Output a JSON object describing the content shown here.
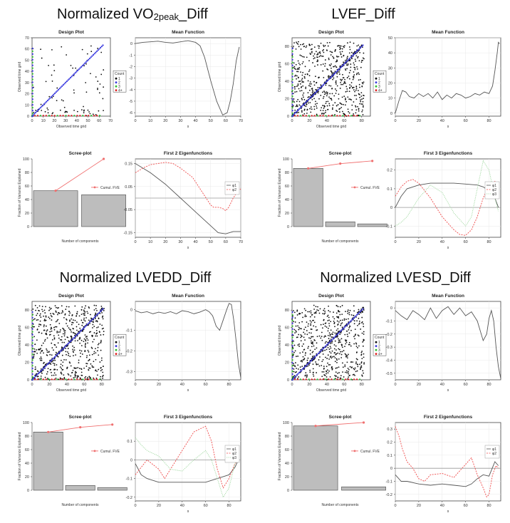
{
  "titles": [
    {
      "text": "Normalized VO2peak_Diff",
      "main": "Normalized VO",
      "sub": "2peak",
      "rest": "_Diff"
    },
    {
      "text": "LVEF_Diff"
    },
    {
      "text": "Normalized LVEDD_Diff"
    },
    {
      "text": "Normalized LVESD_Diff"
    }
  ],
  "colors": {
    "fve": "#f07070",
    "bar": "#bdbdbd",
    "phi1": "#555555",
    "phi2": "#ef4a4a",
    "phi3": "#9fd89f",
    "count1": "#111111",
    "count2": "#3a3adf",
    "count3": "#2fbf2f",
    "count4": "#e02020"
  },
  "chart_data": [
    {
      "panel": "Normalized VO2peak_Diff",
      "design": {
        "type": "scatter",
        "title": "Design Plot",
        "xlabel": "Observed time grid",
        "ylabel": "Observed time grid",
        "xlim": [
          0,
          70
        ],
        "ylim": [
          0,
          70
        ],
        "xticks": [
          0,
          10,
          20,
          30,
          40,
          50,
          60,
          70
        ],
        "yticks": [
          0,
          10,
          20,
          30,
          40,
          50,
          60,
          70
        ],
        "legend_title": "Count",
        "legend": [
          "1",
          "2",
          "3",
          "4+"
        ],
        "density": "sparse"
      },
      "mean": {
        "type": "line",
        "title": "Mean Function",
        "xlabel": "s",
        "xlim": [
          0,
          70
        ],
        "ylim": [
          -6.3,
          0.5
        ],
        "xticks": [
          0,
          10,
          20,
          30,
          40,
          50,
          60,
          70
        ],
        "yticks": [
          0,
          -1,
          -2,
          -3,
          -4,
          -5,
          -6
        ],
        "x": [
          0,
          5,
          10,
          15,
          20,
          25,
          30,
          35,
          40,
          43,
          46,
          50,
          54,
          58,
          61,
          63,
          65,
          67,
          69
        ],
        "y": [
          0,
          0.1,
          0.15,
          0.2,
          0.1,
          0.05,
          0.15,
          0.25,
          0.1,
          -0.2,
          -1.2,
          -3.2,
          -5.0,
          -6.2,
          -6.0,
          -5.0,
          -3.5,
          -1.5,
          -0.3
        ]
      },
      "scree": {
        "type": "bar",
        "title": "Scree-plot",
        "xlabel": "Number of components",
        "ylabel": "Fraction of Variance Explained",
        "ylim": [
          0,
          100
        ],
        "yticks": [
          0,
          20,
          40,
          60,
          80,
          100
        ],
        "values": [
          53,
          47
        ],
        "cumulative": [
          53,
          100
        ],
        "legend": "Cumul. FVE"
      },
      "eigen": {
        "type": "line",
        "title": "First 2 Eigenfunctions",
        "xlabel": "s",
        "xlim": [
          0,
          70
        ],
        "ylim": [
          -0.17,
          0.17
        ],
        "xticks": [
          0,
          10,
          20,
          30,
          40,
          50,
          60,
          70
        ],
        "yticks": [
          0.15,
          0.05,
          -0.05,
          -0.15
        ],
        "series": [
          {
            "name": "φ1",
            "x": [
              0,
              10,
              20,
              30,
              40,
              50,
              55,
              60,
              65,
              70
            ],
            "y": [
              0.15,
              0.11,
              0.06,
              0.0,
              -0.06,
              -0.12,
              -0.15,
              -0.155,
              -0.145,
              -0.145
            ]
          },
          {
            "name": "φ2",
            "x": [
              0,
              5,
              10,
              20,
              25,
              30,
              38,
              45,
              50,
              52,
              55,
              58,
              60,
              62,
              65,
              68,
              70
            ],
            "y": [
              0.11,
              0.13,
              0.145,
              0.155,
              0.15,
              0.13,
              0.09,
              0.02,
              -0.03,
              -0.04,
              -0.04,
              -0.045,
              -0.055,
              -0.04,
              0.0,
              0.03,
              0.04
            ]
          }
        ]
      }
    },
    {
      "panel": "LVEF_Diff",
      "design": {
        "type": "scatter",
        "title": "Design Plot",
        "xlabel": "Observed time grid",
        "ylabel": "Observed time grid",
        "xlim": [
          0,
          90
        ],
        "ylim": [
          0,
          90
        ],
        "xticks": [
          0,
          20,
          40,
          60,
          80
        ],
        "yticks": [
          0,
          20,
          40,
          60,
          80
        ],
        "legend_title": "Count",
        "legend": [
          "1",
          "2",
          "3",
          "4+"
        ],
        "density": "dense"
      },
      "mean": {
        "type": "line",
        "title": "Mean Function",
        "xlabel": "s",
        "xlim": [
          0,
          90
        ],
        "ylim": [
          -2,
          50
        ],
        "xticks": [
          0,
          20,
          40,
          60,
          80
        ],
        "yticks": [
          0,
          10,
          20,
          30,
          40,
          50
        ],
        "x": [
          0,
          3,
          6,
          9,
          12,
          16,
          20,
          24,
          28,
          32,
          36,
          40,
          44,
          48,
          52,
          56,
          60,
          64,
          68,
          72,
          76,
          80,
          83,
          85,
          87,
          88,
          89
        ],
        "y": [
          0,
          8,
          15,
          14,
          11,
          10,
          13,
          11,
          13,
          10,
          14,
          9,
          12,
          10,
          13,
          12,
          10,
          11,
          13,
          12,
          14,
          13,
          18,
          28,
          40,
          47,
          46
        ]
      },
      "scree": {
        "type": "bar",
        "title": "Scree-plot",
        "xlabel": "Number of components",
        "ylabel": "Fraction of Variance Explained",
        "ylim": [
          0,
          100
        ],
        "yticks": [
          0,
          20,
          40,
          60,
          80,
          100
        ],
        "values": [
          86,
          7,
          4
        ],
        "cumulative": [
          86,
          93,
          97
        ],
        "legend": "Cumul. FVE"
      },
      "eigen": {
        "type": "line",
        "title": "First 3 Eigenfunctions",
        "xlabel": "s",
        "xlim": [
          0,
          90
        ],
        "ylim": [
          -0.16,
          0.26
        ],
        "xticks": [
          0,
          20,
          40,
          60,
          80
        ],
        "yticks": [
          0.2,
          0.1,
          0.0,
          -0.1
        ],
        "series": [
          {
            "name": "φ1",
            "x": [
              0,
              5,
              10,
              20,
              30,
              40,
              50,
              60,
              70,
              75,
              80,
              85,
              88
            ],
            "y": [
              0.0,
              0.06,
              0.1,
              0.12,
              0.13,
              0.13,
              0.13,
              0.125,
              0.12,
              0.11,
              0.09,
              0.05,
              0.0
            ]
          },
          {
            "name": "φ2",
            "x": [
              0,
              5,
              10,
              15,
              20,
              25,
              30,
              40,
              50,
              55,
              60,
              65,
              70,
              75,
              80,
              85,
              88
            ],
            "y": [
              0.06,
              0.11,
              0.14,
              0.15,
              0.13,
              0.09,
              0.05,
              -0.05,
              -0.12,
              -0.145,
              -0.15,
              -0.12,
              -0.05,
              0.05,
              0.12,
              0.14,
              0.08
            ]
          },
          {
            "name": "φ3",
            "x": [
              0,
              5,
              10,
              20,
              30,
              40,
              50,
              60,
              65,
              70,
              75,
              80,
              85,
              88
            ],
            "y": [
              -0.1,
              -0.08,
              -0.05,
              0.05,
              0.12,
              0.08,
              -0.03,
              -0.1,
              -0.05,
              0.1,
              0.25,
              0.2,
              0.05,
              -0.02
            ]
          }
        ]
      }
    },
    {
      "panel": "Normalized LVEDD_Diff",
      "design": {
        "type": "scatter",
        "title": "Design Plot",
        "xlabel": "Observed time grid",
        "ylabel": "Observed time grid",
        "xlim": [
          0,
          90
        ],
        "ylim": [
          0,
          90
        ],
        "xticks": [
          0,
          20,
          40,
          60,
          80
        ],
        "yticks": [
          0,
          20,
          40,
          60,
          80
        ],
        "legend_title": "Count",
        "legend": [
          "1",
          "2",
          "3",
          "4+"
        ],
        "density": "dense"
      },
      "mean": {
        "type": "line",
        "title": "Mean Function",
        "xlabel": "s",
        "xlim": [
          0,
          90
        ],
        "ylim": [
          -0.34,
          0.04
        ],
        "xticks": [
          0,
          20,
          40,
          60,
          80
        ],
        "yticks": [
          0.0,
          -0.1,
          -0.2,
          -0.3
        ],
        "x": [
          0,
          5,
          10,
          15,
          20,
          25,
          30,
          35,
          40,
          45,
          50,
          55,
          60,
          63,
          66,
          69,
          72,
          75,
          78,
          80,
          82,
          84,
          86,
          88,
          90
        ],
        "y": [
          -0.005,
          -0.015,
          -0.01,
          -0.02,
          -0.012,
          -0.018,
          -0.01,
          -0.02,
          -0.005,
          -0.01,
          -0.02,
          -0.012,
          0.0,
          -0.01,
          -0.03,
          -0.08,
          -0.1,
          -0.05,
          0.0,
          0.03,
          0.025,
          -0.05,
          -0.15,
          -0.26,
          -0.33
        ]
      },
      "scree": {
        "type": "bar",
        "title": "Scree-plot",
        "xlabel": "Number of components",
        "ylabel": "Fraction of Variance Explained",
        "ylim": [
          0,
          100
        ],
        "yticks": [
          0,
          20,
          40,
          60,
          80,
          100
        ],
        "values": [
          86,
          7,
          4
        ],
        "cumulative": [
          86,
          93,
          97
        ],
        "legend": "Cumul. FVE"
      },
      "eigen": {
        "type": "line",
        "title": "First 3 Eigenfunctions",
        "xlabel": "s",
        "xlim": [
          0,
          90
        ],
        "ylim": [
          -0.22,
          0.2
        ],
        "xticks": [
          0,
          20,
          40,
          60,
          80
        ],
        "yticks": [
          0.1,
          0.0,
          -0.1,
          -0.2
        ],
        "series": [
          {
            "name": "φ1",
            "x": [
              0,
              5,
              10,
              20,
              30,
              40,
              50,
              60,
              70,
              80,
              85,
              88
            ],
            "y": [
              -0.02,
              -0.08,
              -0.1,
              -0.12,
              -0.12,
              -0.12,
              -0.12,
              -0.12,
              -0.1,
              -0.08,
              -0.04,
              -0.0
            ]
          },
          {
            "name": "φ2",
            "x": [
              0,
              5,
              10,
              20,
              25,
              30,
              40,
              50,
              60,
              65,
              70,
              75,
              80,
              85,
              88
            ],
            "y": [
              -0.08,
              -0.04,
              0.0,
              -0.05,
              -0.1,
              -0.05,
              0.05,
              0.15,
              0.18,
              0.1,
              -0.05,
              -0.15,
              -0.1,
              -0.02,
              0.0
            ]
          },
          {
            "name": "φ3",
            "x": [
              0,
              5,
              10,
              20,
              30,
              40,
              50,
              60,
              65,
              70,
              75,
              80,
              85,
              88
            ],
            "y": [
              0.12,
              0.08,
              0.05,
              0.02,
              -0.05,
              -0.06,
              0.0,
              0.05,
              0.0,
              -0.1,
              -0.2,
              -0.15,
              -0.02,
              0.02
            ]
          }
        ]
      }
    },
    {
      "panel": "Normalized LVESD_Diff",
      "design": {
        "type": "scatter",
        "title": "Design Plot",
        "xlabel": "Observed time grid",
        "ylabel": "Observed time grid",
        "xlim": [
          0,
          90
        ],
        "ylim": [
          0,
          90
        ],
        "xticks": [
          0,
          20,
          40,
          60,
          80
        ],
        "yticks": [
          0,
          20,
          40,
          60,
          80
        ],
        "legend_title": "Count",
        "legend": [
          "1",
          "2",
          "3",
          "4+"
        ],
        "density": "dense"
      },
      "mean": {
        "type": "line",
        "title": "Mean Function",
        "xlabel": "s",
        "xlim": [
          0,
          90
        ],
        "ylim": [
          -0.55,
          0.05
        ],
        "xticks": [
          0,
          20,
          40,
          60,
          80
        ],
        "yticks": [
          0.0,
          -0.1,
          -0.2,
          -0.3,
          -0.4,
          -0.5
        ],
        "x": [
          0,
          5,
          10,
          15,
          20,
          25,
          30,
          35,
          40,
          45,
          50,
          55,
          60,
          65,
          70,
          75,
          78,
          80,
          82,
          84,
          86,
          88,
          90
        ],
        "y": [
          -0.02,
          -0.06,
          -0.09,
          -0.02,
          -0.05,
          -0.09,
          0.0,
          -0.08,
          -0.02,
          0.01,
          -0.05,
          0.0,
          -0.06,
          -0.03,
          -0.1,
          -0.25,
          -0.2,
          -0.08,
          -0.02,
          -0.1,
          -0.3,
          -0.45,
          -0.54
        ]
      },
      "scree": {
        "type": "bar",
        "title": "Scree-plot",
        "xlabel": "Number of components",
        "ylabel": "Fraction of Variance Explained",
        "ylim": [
          0,
          100
        ],
        "yticks": [
          0,
          20,
          40,
          60,
          80,
          100
        ],
        "values": [
          95,
          5
        ],
        "cumulative": [
          95,
          100
        ],
        "legend": "Cumul. FVE"
      },
      "eigen": {
        "type": "line",
        "title": "First 2 Eigenfunctions",
        "xlabel": "s",
        "xlim": [
          0,
          90
        ],
        "ylim": [
          -0.25,
          0.35
        ],
        "xticks": [
          0,
          20,
          40,
          60,
          80
        ],
        "yticks": [
          0.3,
          0.2,
          0.1,
          0.0,
          -0.1,
          -0.2
        ],
        "series": [
          {
            "name": "φ1",
            "x": [
              0,
              5,
              10,
              20,
              30,
              40,
              50,
              60,
              65,
              70,
              75,
              80,
              85,
              88
            ],
            "y": [
              -0.05,
              -0.1,
              -0.1,
              -0.12,
              -0.13,
              -0.12,
              -0.13,
              -0.14,
              -0.12,
              -0.08,
              -0.05,
              -0.06,
              0.05,
              0.02
            ]
          },
          {
            "name": "φ2",
            "x": [
              0,
              3,
              6,
              10,
              15,
              20,
              25,
              30,
              40,
              50,
              60,
              65,
              70,
              75,
              78,
              80,
              83,
              86,
              88
            ],
            "y": [
              0.32,
              0.25,
              0.15,
              0.05,
              0.0,
              -0.08,
              -0.1,
              -0.05,
              -0.04,
              -0.07,
              0.03,
              0.08,
              -0.05,
              -0.15,
              -0.22,
              -0.2,
              -0.05,
              0.02,
              0.0
            ]
          }
        ]
      }
    }
  ]
}
